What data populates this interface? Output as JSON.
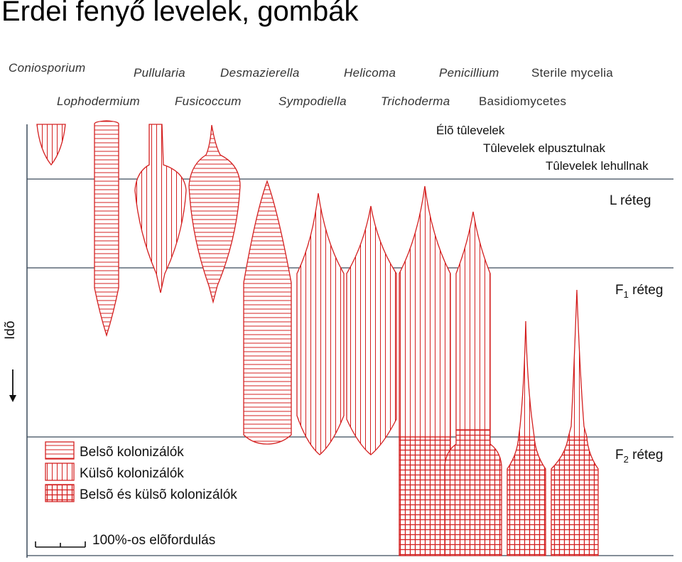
{
  "title": "Erdei fenyő levelek, gombák",
  "genera_row1": [
    "Coniosporium",
    "Pullularia",
    "Desmazierella",
    "Helicoma",
    "Penicillium",
    "Sterile mycelia"
  ],
  "genera_row2": [
    "Lophodermium",
    "Fusicoccum",
    "Sympodiella",
    "Trichoderma",
    "Basidiomycetes"
  ],
  "stages": {
    "live": "Élõ tûlevelek",
    "dying": "Tûlevelek elpusztulnak",
    "falling": "Tûlevelek lehullnak"
  },
  "layers": {
    "L": "L réteg",
    "F1_prefix": "F",
    "F1_sub": "1",
    "F1_suffix": " réteg",
    "F2_prefix": "F",
    "F2_sub": "2",
    "F2_suffix": " réteg"
  },
  "time_axis": "Idõ",
  "legend": {
    "inner": "Belsõ kolonizálók",
    "outer": "Külsõ kolonizálók",
    "both": "Belsõ és külsõ kolonizálók"
  },
  "scale": "100%-os elõfordulás",
  "colors": {
    "hatch": "#d42020",
    "line": "#3a4a5a",
    "text": "#111111"
  }
}
